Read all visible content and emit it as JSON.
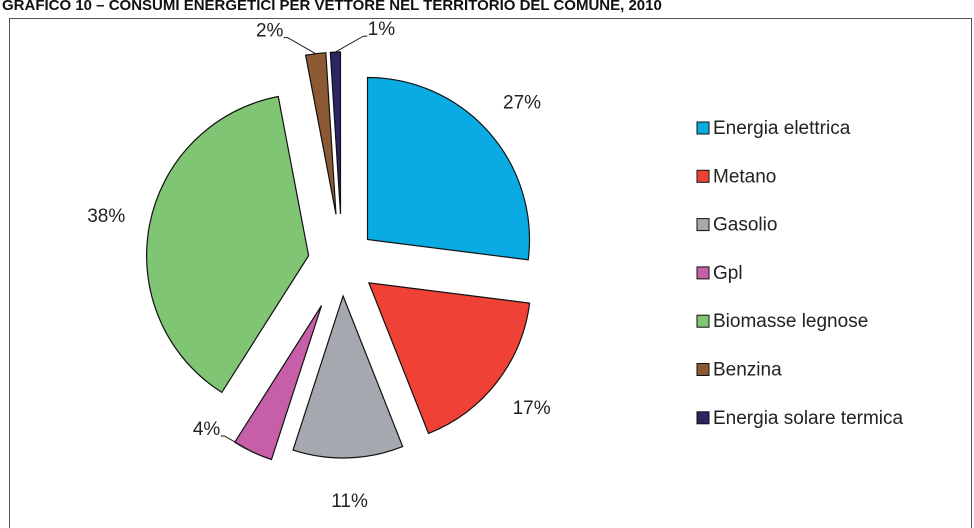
{
  "chart_data": {
    "type": "pie",
    "title": "GRAFICO 10 – CONSUMI ENERGETICI PER VETTORE NEL TERRITORIO DEL COMUNE, 2010",
    "categories": [
      "Energia elettrica",
      "Metano",
      "Gasolio",
      "Gpl",
      "Biomasse legnose",
      "Benzina",
      "Energia solare termica"
    ],
    "values": [
      27,
      17,
      11,
      4,
      38,
      2,
      1
    ],
    "value_labels": [
      "27%",
      "17%",
      "11%",
      "4%",
      "38%",
      "2%",
      "1%"
    ],
    "colors": [
      "#0aabe3",
      "#ef4136",
      "#a6a8b0",
      "#c65ea8",
      "#80c574",
      "#8b5a34",
      "#2b2564"
    ],
    "legend": "right"
  }
}
